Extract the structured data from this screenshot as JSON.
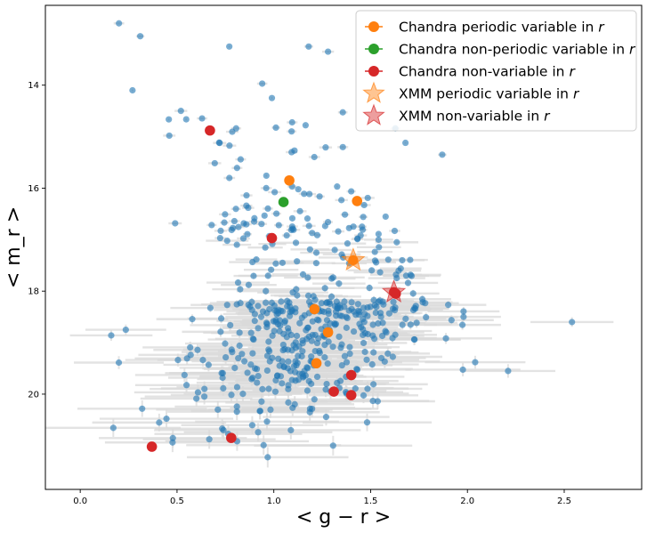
{
  "chart_data": {
    "type": "scatter",
    "title": "",
    "xlabel": "< g − r >",
    "ylabel": "< m_r >",
    "xlim": [
      -0.18,
      2.9
    ],
    "ylim": [
      21.85,
      12.45
    ],
    "y_inverted": true,
    "xticks": [
      "0.0",
      "0.5",
      "1.0",
      "1.5",
      "2.0",
      "2.5"
    ],
    "yticks": [
      "14",
      "16",
      "18",
      "20"
    ],
    "legend_position": "top-right",
    "legend": [
      {
        "label": "Chandra periodic variable in r",
        "marker": "circle-errorbar",
        "color": "#ff7f0e"
      },
      {
        "label": "Chandra non-periodic variable in r",
        "marker": "circle-errorbar",
        "color": "#2ca02c"
      },
      {
        "label": "Chandra non-variable in r",
        "marker": "circle-errorbar",
        "color": "#d62728"
      },
      {
        "label": "XMM periodic variable in r",
        "marker": "star",
        "color": "#ff7f0e"
      },
      {
        "label": "XMM non-variable in r",
        "marker": "star",
        "color": "#d62728"
      }
    ],
    "series": [
      {
        "name": "Chandra periodic variable in r",
        "color": "#ff7f0e",
        "x": [
          1.08,
          1.43,
          1.21,
          1.28,
          1.22
        ],
        "y": [
          15.85,
          16.25,
          18.35,
          18.8,
          19.4
        ]
      },
      {
        "name": "Chandra non-periodic variable in r",
        "color": "#2ca02c",
        "x": [
          1.05
        ],
        "y": [
          16.27
        ]
      },
      {
        "name": "Chandra non-variable in r",
        "color": "#d62728",
        "x": [
          0.67,
          0.99,
          1.63,
          1.4,
          1.31,
          1.4,
          0.78,
          0.37
        ],
        "y": [
          14.88,
          16.97,
          18.05,
          19.63,
          19.95,
          20.02,
          20.85,
          21.02
        ]
      },
      {
        "name": "XMM periodic variable in r",
        "color": "#ff7f0e",
        "x": [
          1.41
        ],
        "y": [
          17.4
        ]
      },
      {
        "name": "XMM non-variable in r",
        "color": "#d62728",
        "x": [
          1.62
        ],
        "y": [
          18.02
        ]
      }
    ],
    "background_points": {
      "color": "#1f77b4",
      "count": 540,
      "notable_points": [
        {
          "x": 0.2,
          "y": 12.8
        },
        {
          "x": 0.31,
          "y": 13.05
        },
        {
          "x": 0.77,
          "y": 13.25
        },
        {
          "x": 1.18,
          "y": 13.25
        },
        {
          "x": 1.28,
          "y": 13.35
        },
        {
          "x": 0.94,
          "y": 13.97
        },
        {
          "x": 0.27,
          "y": 14.1
        },
        {
          "x": 0.99,
          "y": 14.25
        },
        {
          "x": 0.52,
          "y": 14.5
        },
        {
          "x": 0.46,
          "y": 14.98
        },
        {
          "x": 1.87,
          "y": 15.35
        },
        {
          "x": 1.68,
          "y": 15.12
        },
        {
          "x": 2.54,
          "y": 18.6
        },
        {
          "x": 2.04,
          "y": 19.38
        },
        {
          "x": 2.21,
          "y": 19.55
        }
      ]
    }
  }
}
